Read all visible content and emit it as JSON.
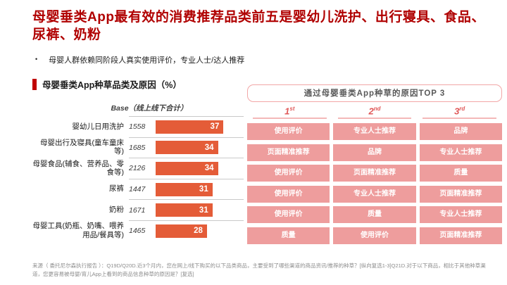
{
  "slide": {
    "title": "母婴垂类App最有效的消费推荐品类前五是婴幼儿洗护、出行寝具、食品、尿裤、奶粉",
    "bullet_marker": "•",
    "bullet": "母婴人群依赖同阶段人真实使用评价，专业人士/达人推荐",
    "section_label": "母婴垂类App种草品类及原因（%）",
    "source_note": "来源（ 委托尼尔森执行报告 ）：Q19D/Q20D.近3个月内，您在网上/线下购买的以下品类商品，主要受到了哪些渠道的商品资讯/推荐的种草？[纵向复选1-3]Q21D.对于以下商品，相比于其他种草渠道，您更容易被母婴/育儿App上看到的商品信息种草的原因是？[复选]"
  },
  "top3": {
    "box_title": "通过母婴垂类App种草的原因TOP 3",
    "rank_headers": [
      {
        "num": "1",
        "suffix": "st"
      },
      {
        "num": "2",
        "suffix": "nd"
      },
      {
        "num": "3",
        "suffix": "rd"
      }
    ]
  },
  "colors": {
    "title_red": "#b00000",
    "accent_red": "#c00000",
    "bar_orange": "#e45c38",
    "cell_pink": "#ee9d9d",
    "rank_red": "#e05858",
    "underline_pink": "#f4b8b8",
    "box_border_pink": "#f2a6a6"
  },
  "chart_data": [
    {
      "type": "bar",
      "orientation": "horizontal",
      "title": "母婴垂类App种草品类及原因（%）",
      "base_label": "Base（线上线下合计）",
      "categories": [
        "婴幼儿日用洗护",
        "母婴出行及寝具(童车童床等)",
        "母婴食品(辅食、营养品、零食等)",
        "尿裤",
        "奶粉",
        "母婴工具(奶瓶、奶嘴、喂养用品/餐具等)"
      ],
      "base_values": [
        1558,
        1685,
        2126,
        1447,
        1671,
        1465
      ],
      "values": [
        37,
        34,
        34,
        31,
        31,
        28
      ],
      "unit": "%",
      "xlim": [
        0,
        48
      ],
      "grid": false,
      "value_labels": "inside-end"
    },
    {
      "type": "table",
      "title": "通过母婴垂类App种草的原因TOP 3",
      "headers": [
        "1st",
        "2nd",
        "3rd"
      ],
      "rows": [
        [
          "使用评价",
          "专业人士推荐",
          "品牌"
        ],
        [
          "页面精准推荐",
          "品牌",
          "专业人士推荐"
        ],
        [
          "使用评价",
          "页面精准推荐",
          "质量"
        ],
        [
          "使用评价",
          "专业人士推荐",
          "页面精准推荐"
        ],
        [
          "使用评价",
          "质量",
          "专业人士推荐"
        ],
        [
          "质量",
          "使用评价",
          "页面精准推荐"
        ]
      ]
    }
  ]
}
